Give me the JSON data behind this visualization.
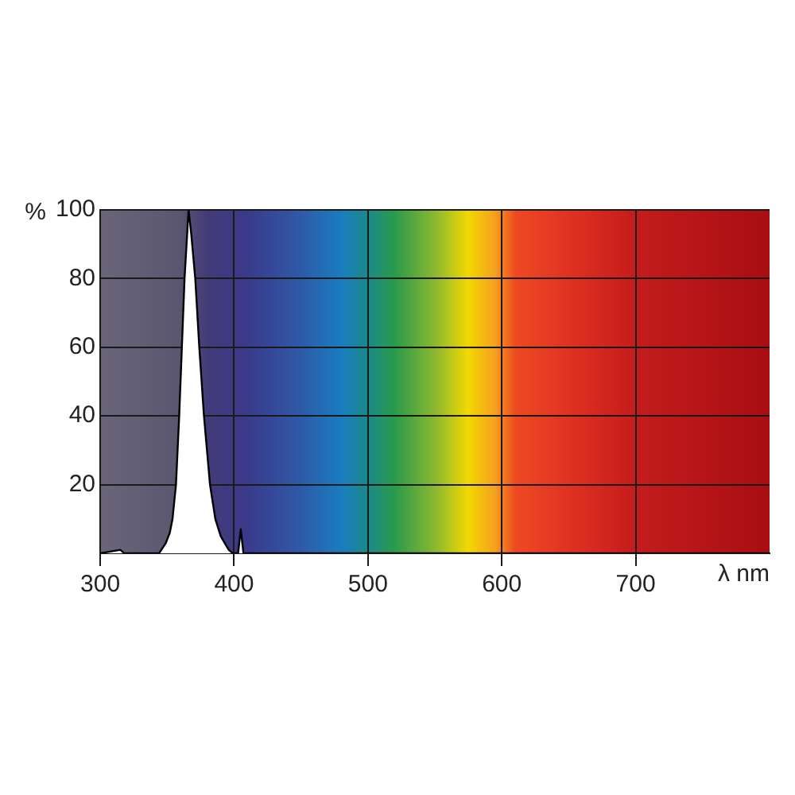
{
  "chart_data": {
    "type": "area",
    "xlabel": "λ nm",
    "ylabel": "%",
    "x": [
      300,
      315,
      318,
      320,
      340,
      344,
      349,
      352,
      354,
      356.6,
      359,
      361,
      363,
      366,
      368,
      371,
      374,
      377.5,
      382,
      386,
      390,
      393,
      396,
      399,
      403,
      405,
      407,
      410,
      500,
      600,
      700,
      800
    ],
    "series": [
      {
        "color": "#ffffff",
        "values": [
          0,
          1,
          0,
          0,
          0,
          0,
          3,
          6,
          10,
          20,
          40,
          60,
          80,
          100,
          93,
          80,
          60,
          40,
          20,
          10,
          5,
          3,
          1,
          0,
          0,
          7,
          0,
          0,
          0,
          0,
          0,
          0
        ]
      }
    ],
    "xlim": [
      300,
      800
    ],
    "xticks": [
      300,
      400,
      500,
      600,
      700
    ],
    "ylim": [
      0,
      100
    ],
    "yticks": [
      20,
      40,
      60,
      80,
      100
    ],
    "grid": true,
    "legend": false,
    "marker": "none",
    "line_style": "solid"
  }
}
